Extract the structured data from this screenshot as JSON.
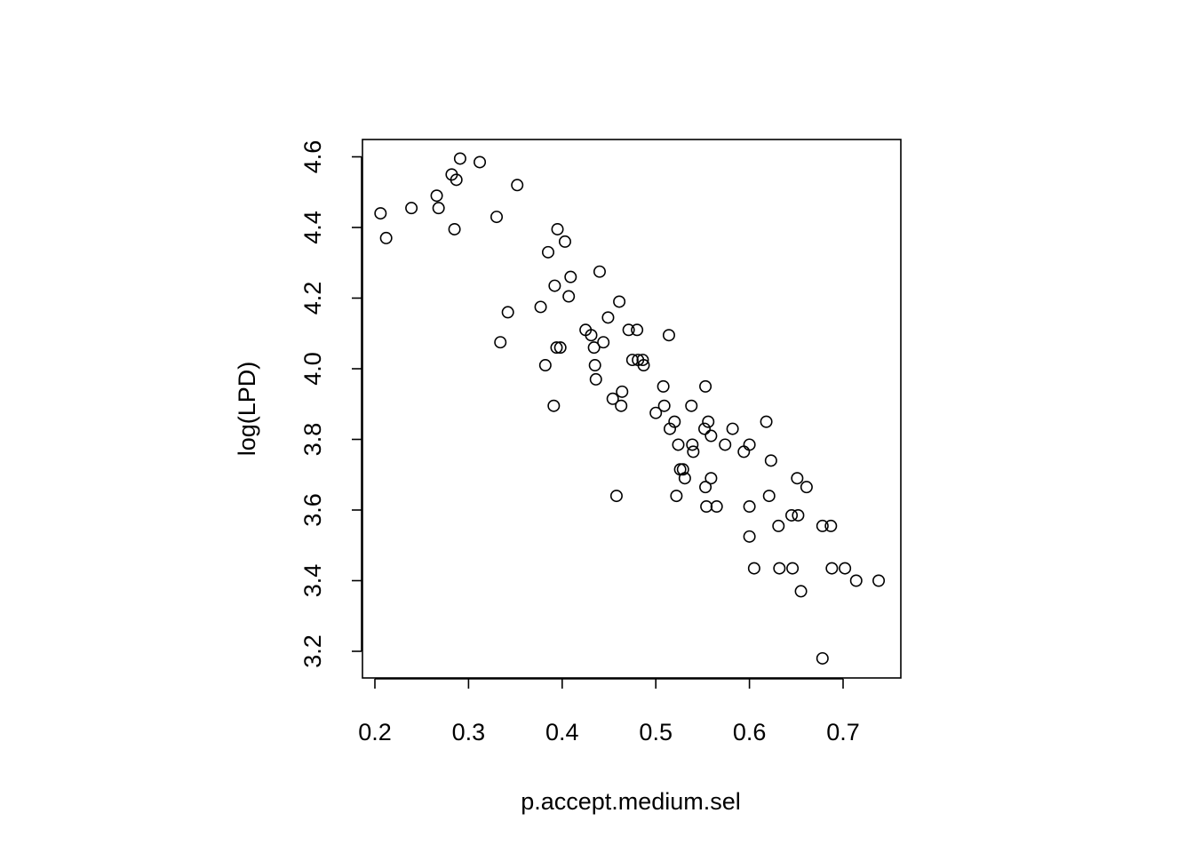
{
  "chart_data": {
    "type": "scatter",
    "title": "",
    "xlabel": "p.accept.medium.sel",
    "ylabel": "log(LPD)",
    "xlim": [
      0.2,
      0.74
    ],
    "ylim": [
      3.2,
      4.6
    ],
    "x_ticks": [
      0.2,
      0.3,
      0.4,
      0.5,
      0.6,
      0.7
    ],
    "x_tick_labels": [
      "0.2",
      "0.3",
      "0.4",
      "0.5",
      "0.6",
      "0.7"
    ],
    "y_ticks": [
      3.2,
      3.4,
      3.6,
      3.8,
      4.0,
      4.2,
      4.4,
      4.6
    ],
    "y_tick_labels": [
      "3.2",
      "3.4",
      "3.6",
      "3.8",
      "4.0",
      "4.2",
      "4.4",
      "4.6"
    ],
    "grid": false,
    "legend": "none",
    "marker": "open-circle",
    "color": "#000000",
    "points": [
      [
        0.206,
        4.44
      ],
      [
        0.212,
        4.37
      ],
      [
        0.239,
        4.455
      ],
      [
        0.266,
        4.49
      ],
      [
        0.268,
        4.455
      ],
      [
        0.282,
        4.55
      ],
      [
        0.285,
        4.395
      ],
      [
        0.287,
        4.535
      ],
      [
        0.291,
        4.595
      ],
      [
        0.312,
        4.585
      ],
      [
        0.33,
        4.43
      ],
      [
        0.334,
        4.075
      ],
      [
        0.342,
        4.16
      ],
      [
        0.352,
        4.52
      ],
      [
        0.377,
        4.175
      ],
      [
        0.382,
        4.01
      ],
      [
        0.385,
        4.33
      ],
      [
        0.391,
        3.895
      ],
      [
        0.392,
        4.235
      ],
      [
        0.394,
        4.06
      ],
      [
        0.395,
        4.395
      ],
      [
        0.398,
        4.06
      ],
      [
        0.403,
        4.36
      ],
      [
        0.407,
        4.205
      ],
      [
        0.409,
        4.26
      ],
      [
        0.425,
        4.11
      ],
      [
        0.431,
        4.095
      ],
      [
        0.434,
        4.06
      ],
      [
        0.435,
        4.01
      ],
      [
        0.436,
        3.97
      ],
      [
        0.44,
        4.275
      ],
      [
        0.444,
        4.075
      ],
      [
        0.449,
        4.145
      ],
      [
        0.454,
        3.915
      ],
      [
        0.458,
        3.64
      ],
      [
        0.461,
        4.19
      ],
      [
        0.463,
        3.895
      ],
      [
        0.464,
        3.935
      ],
      [
        0.471,
        4.11
      ],
      [
        0.475,
        4.025
      ],
      [
        0.48,
        4.11
      ],
      [
        0.481,
        4.025
      ],
      [
        0.486,
        4.025
      ],
      [
        0.487,
        4.01
      ],
      [
        0.5,
        3.875
      ],
      [
        0.508,
        3.95
      ],
      [
        0.509,
        3.895
      ],
      [
        0.514,
        4.095
      ],
      [
        0.515,
        3.83
      ],
      [
        0.52,
        3.85
      ],
      [
        0.522,
        3.64
      ],
      [
        0.524,
        3.785
      ],
      [
        0.526,
        3.715
      ],
      [
        0.529,
        3.715
      ],
      [
        0.531,
        3.69
      ],
      [
        0.538,
        3.895
      ],
      [
        0.539,
        3.785
      ],
      [
        0.54,
        3.765
      ],
      [
        0.552,
        3.83
      ],
      [
        0.553,
        3.95
      ],
      [
        0.553,
        3.665
      ],
      [
        0.554,
        3.61
      ],
      [
        0.556,
        3.85
      ],
      [
        0.559,
        3.81
      ],
      [
        0.559,
        3.69
      ],
      [
        0.565,
        3.61
      ],
      [
        0.574,
        3.785
      ],
      [
        0.582,
        3.83
      ],
      [
        0.594,
        3.765
      ],
      [
        0.6,
        3.785
      ],
      [
        0.6,
        3.61
      ],
      [
        0.6,
        3.525
      ],
      [
        0.605,
        3.435
      ],
      [
        0.618,
        3.85
      ],
      [
        0.621,
        3.64
      ],
      [
        0.623,
        3.74
      ],
      [
        0.631,
        3.555
      ],
      [
        0.632,
        3.435
      ],
      [
        0.645,
        3.585
      ],
      [
        0.646,
        3.435
      ],
      [
        0.651,
        3.69
      ],
      [
        0.652,
        3.585
      ],
      [
        0.655,
        3.37
      ],
      [
        0.661,
        3.665
      ],
      [
        0.678,
        3.555
      ],
      [
        0.678,
        3.18
      ],
      [
        0.687,
        3.555
      ],
      [
        0.688,
        3.435
      ],
      [
        0.702,
        3.435
      ],
      [
        0.714,
        3.4
      ],
      [
        0.738,
        3.4
      ]
    ]
  }
}
